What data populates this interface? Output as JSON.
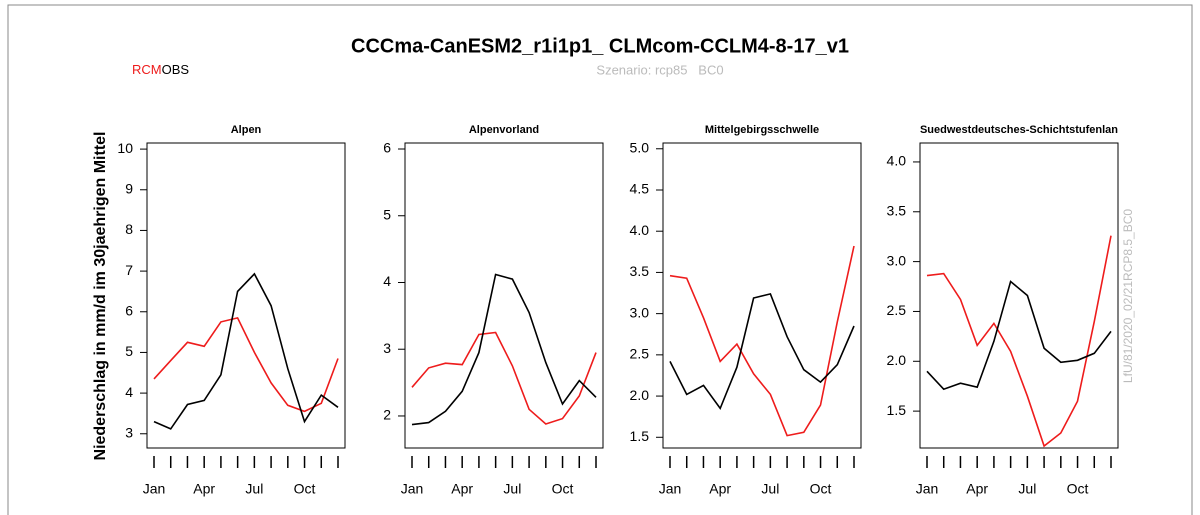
{
  "header": {
    "title": "CCCma-CanESM2_r1i1p1_ CLMcom-CCLM4-8-17_v1",
    "scenario": "Szenario: rcp85   BC0",
    "y_label": "Niederschlag in mm/d im 30jaehrigen Mittel",
    "watermark": "LfU/81/2020_02/21RCP8.5_BC0"
  },
  "legend": {
    "series": [
      {
        "name": "RCM",
        "color": "#ee1c1c"
      },
      {
        "name": "OBS",
        "color": "#000000"
      }
    ]
  },
  "chart_data": [
    {
      "type": "line",
      "title": "Alpen",
      "categories": [
        "Jan",
        null,
        null,
        "Apr",
        null,
        null,
        "Jul",
        null,
        null,
        "Oct",
        null,
        null
      ],
      "series": [
        {
          "values": [
            4.35,
            4.8,
            5.25,
            5.15,
            5.75,
            5.85,
            5.0,
            4.25,
            3.7,
            3.55,
            3.75,
            4.85
          ]
        },
        {
          "values": [
            3.3,
            3.12,
            3.72,
            3.82,
            4.45,
            6.5,
            6.93,
            6.15,
            4.6,
            3.3,
            3.95,
            3.65
          ]
        }
      ],
      "ylim": [
        2.65,
        10.15
      ],
      "yticks": [
        3,
        4,
        5,
        6,
        7,
        8,
        9,
        10
      ]
    },
    {
      "type": "line",
      "title": "Alpenvorland",
      "categories": [
        "Jan",
        null,
        null,
        "Apr",
        null,
        null,
        "Jul",
        null,
        null,
        "Oct",
        null,
        null
      ],
      "series": [
        {
          "values": [
            2.43,
            2.72,
            2.79,
            2.77,
            3.22,
            3.25,
            2.75,
            2.1,
            1.88,
            1.96,
            2.3,
            2.95
          ]
        },
        {
          "values": [
            1.87,
            1.9,
            2.07,
            2.37,
            2.95,
            4.12,
            4.05,
            3.55,
            2.8,
            2.18,
            2.53,
            2.28
          ]
        }
      ],
      "ylim": [
        1.52,
        6.09
      ],
      "yticks": [
        2,
        3,
        4,
        5,
        6
      ]
    },
    {
      "type": "line",
      "title": "Mittelgebirgsschwelle",
      "categories": [
        "Jan",
        null,
        null,
        "Apr",
        null,
        null,
        "Jul",
        null,
        null,
        "Oct",
        null,
        null
      ],
      "series": [
        {
          "values": [
            3.46,
            3.43,
            2.95,
            2.42,
            2.63,
            2.27,
            2.02,
            1.52,
            1.56,
            1.89,
            2.9,
            3.82
          ]
        },
        {
          "values": [
            2.42,
            2.02,
            2.13,
            1.85,
            2.35,
            3.19,
            3.24,
            2.72,
            2.32,
            2.17,
            2.38,
            2.85
          ]
        }
      ],
      "ylim": [
        1.37,
        5.07
      ],
      "yticks": [
        {
          "value": 1.5,
          "label": "1.5"
        },
        {
          "value": 2,
          "label": "2.0"
        },
        {
          "value": 2.5,
          "label": "2.5"
        },
        {
          "value": 3,
          "label": "3.0"
        },
        {
          "value": 3.5,
          "label": "3.5"
        },
        {
          "value": 4,
          "label": "4.0"
        },
        {
          "value": 4.5,
          "label": "4.5"
        },
        {
          "value": 5,
          "label": "5.0"
        }
      ]
    },
    {
      "type": "line",
      "title": "Suedwestdeutsches-Schichtstufenlan",
      "categories": [
        "Jan",
        null,
        null,
        "Apr",
        null,
        null,
        "Jul",
        null,
        null,
        "Oct",
        null,
        null
      ],
      "series": [
        {
          "values": [
            2.86,
            2.88,
            2.62,
            2.16,
            2.38,
            2.1,
            1.65,
            1.15,
            1.28,
            1.6,
            2.4,
            3.26
          ]
        },
        {
          "values": [
            1.9,
            1.72,
            1.78,
            1.74,
            2.2,
            2.8,
            2.66,
            2.13,
            1.99,
            2.01,
            2.08,
            2.3
          ]
        }
      ],
      "ylim": [
        1.13,
        4.19
      ],
      "yticks": [
        1.5,
        {
          "value": 2,
          "label": "2.0"
        },
        2.5,
        {
          "value": 3,
          "label": "3.0"
        },
        3.5,
        {
          "value": 4,
          "label": "4.0"
        }
      ]
    }
  ]
}
